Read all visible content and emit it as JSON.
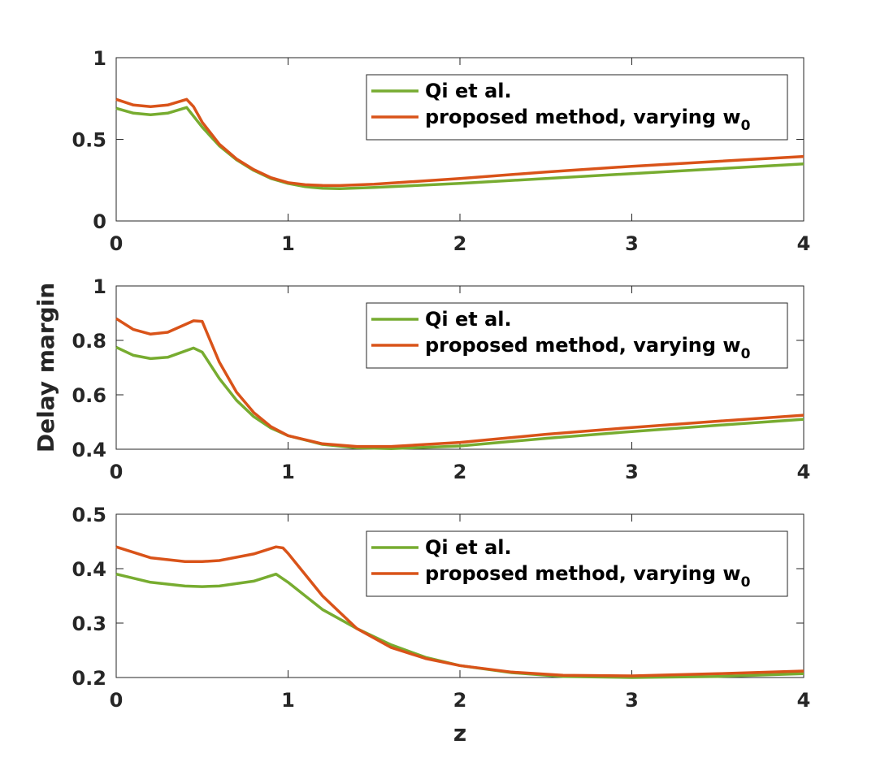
{
  "chart_data": [
    {
      "type": "line",
      "xlim": [
        0,
        4
      ],
      "ylim": [
        0,
        1
      ],
      "xticks": [
        "0",
        "1",
        "2",
        "3",
        "4"
      ],
      "yticks": [
        "0",
        "0.5",
        "1"
      ],
      "ytick_values": [
        0,
        0.5,
        1
      ],
      "legend": {
        "position": "top-right"
      },
      "series": [
        {
          "name": "Qi et al.",
          "color": "#77AC30",
          "x": [
            0,
            0.1,
            0.2,
            0.3,
            0.41,
            0.5,
            0.6,
            0.7,
            0.8,
            0.9,
            1.0,
            1.1,
            1.2,
            1.3,
            1.5,
            2.0,
            2.5,
            3.0,
            3.5,
            4.0
          ],
          "y": [
            0.69,
            0.66,
            0.65,
            0.66,
            0.695,
            0.575,
            0.46,
            0.375,
            0.31,
            0.26,
            0.23,
            0.21,
            0.2,
            0.198,
            0.205,
            0.23,
            0.26,
            0.29,
            0.32,
            0.35
          ]
        },
        {
          "name": "proposed method, varying w",
          "name_subscript": "0",
          "color": "#D95319",
          "x": [
            0,
            0.1,
            0.2,
            0.3,
            0.41,
            0.45,
            0.5,
            0.6,
            0.7,
            0.8,
            0.9,
            1.0,
            1.1,
            1.2,
            1.3,
            1.5,
            2.0,
            2.5,
            3.0,
            3.5,
            4.0
          ],
          "y": [
            0.745,
            0.71,
            0.7,
            0.71,
            0.745,
            0.7,
            0.605,
            0.47,
            0.38,
            0.315,
            0.265,
            0.235,
            0.222,
            0.218,
            0.217,
            0.225,
            0.26,
            0.3,
            0.335,
            0.365,
            0.395
          ]
        }
      ]
    },
    {
      "type": "line",
      "xlim": [
        0,
        4
      ],
      "ylim": [
        0.4,
        1
      ],
      "xticks": [
        "0",
        "1",
        "2",
        "3",
        "4"
      ],
      "yticks": [
        "0.4",
        "0.6",
        "0.8",
        "1"
      ],
      "ytick_values": [
        0.4,
        0.6,
        0.8,
        1
      ],
      "ylabel": "Delay margin",
      "legend": {
        "position": "top-right"
      },
      "series": [
        {
          "name": "Qi et al.",
          "color": "#77AC30",
          "x": [
            0,
            0.1,
            0.2,
            0.3,
            0.45,
            0.5,
            0.6,
            0.7,
            0.8,
            0.9,
            1.0,
            1.2,
            1.4,
            1.6,
            2.0,
            2.5,
            3.0,
            3.5,
            4.0
          ],
          "y": [
            0.775,
            0.745,
            0.733,
            0.738,
            0.772,
            0.757,
            0.66,
            0.58,
            0.52,
            0.478,
            0.45,
            0.418,
            0.405,
            0.402,
            0.412,
            0.44,
            0.465,
            0.488,
            0.51
          ]
        },
        {
          "name": "proposed method, varying w",
          "name_subscript": "0",
          "color": "#D95319",
          "x": [
            0,
            0.1,
            0.2,
            0.3,
            0.45,
            0.5,
            0.6,
            0.7,
            0.8,
            0.9,
            1.0,
            1.2,
            1.4,
            1.6,
            2.0,
            2.5,
            3.0,
            3.5,
            4.0
          ],
          "y": [
            0.88,
            0.84,
            0.823,
            0.83,
            0.872,
            0.87,
            0.72,
            0.61,
            0.535,
            0.483,
            0.45,
            0.42,
            0.41,
            0.41,
            0.425,
            0.455,
            0.48,
            0.503,
            0.525
          ]
        }
      ]
    },
    {
      "type": "line",
      "xlim": [
        0,
        4
      ],
      "ylim": [
        0.2,
        0.5
      ],
      "xticks": [
        "0",
        "1",
        "2",
        "3",
        "4"
      ],
      "yticks": [
        "0.2",
        "0.3",
        "0.4",
        "0.5"
      ],
      "ytick_values": [
        0.2,
        0.3,
        0.4,
        0.5
      ],
      "xlabel": "z",
      "legend": {
        "position": "top-right"
      },
      "series": [
        {
          "name": "Qi et al.",
          "color": "#77AC30",
          "x": [
            0,
            0.2,
            0.4,
            0.5,
            0.6,
            0.8,
            0.93,
            1.0,
            1.2,
            1.4,
            1.6,
            1.8,
            2.0,
            2.3,
            2.6,
            3.0,
            3.5,
            4.0
          ],
          "y": [
            0.39,
            0.375,
            0.368,
            0.367,
            0.368,
            0.377,
            0.39,
            0.375,
            0.325,
            0.29,
            0.26,
            0.237,
            0.222,
            0.209,
            0.202,
            0.2,
            0.202,
            0.207
          ]
        },
        {
          "name": "proposed method, varying w",
          "name_subscript": "0",
          "color": "#D95319",
          "x": [
            0,
            0.2,
            0.4,
            0.5,
            0.6,
            0.8,
            0.93,
            0.97,
            1.0,
            1.2,
            1.4,
            1.6,
            1.8,
            2.0,
            2.3,
            2.6,
            3.0,
            3.5,
            4.0
          ],
          "y": [
            0.44,
            0.42,
            0.413,
            0.413,
            0.415,
            0.427,
            0.44,
            0.438,
            0.428,
            0.35,
            0.29,
            0.255,
            0.235,
            0.222,
            0.21,
            0.204,
            0.203,
            0.207,
            0.212
          ]
        }
      ]
    }
  ]
}
